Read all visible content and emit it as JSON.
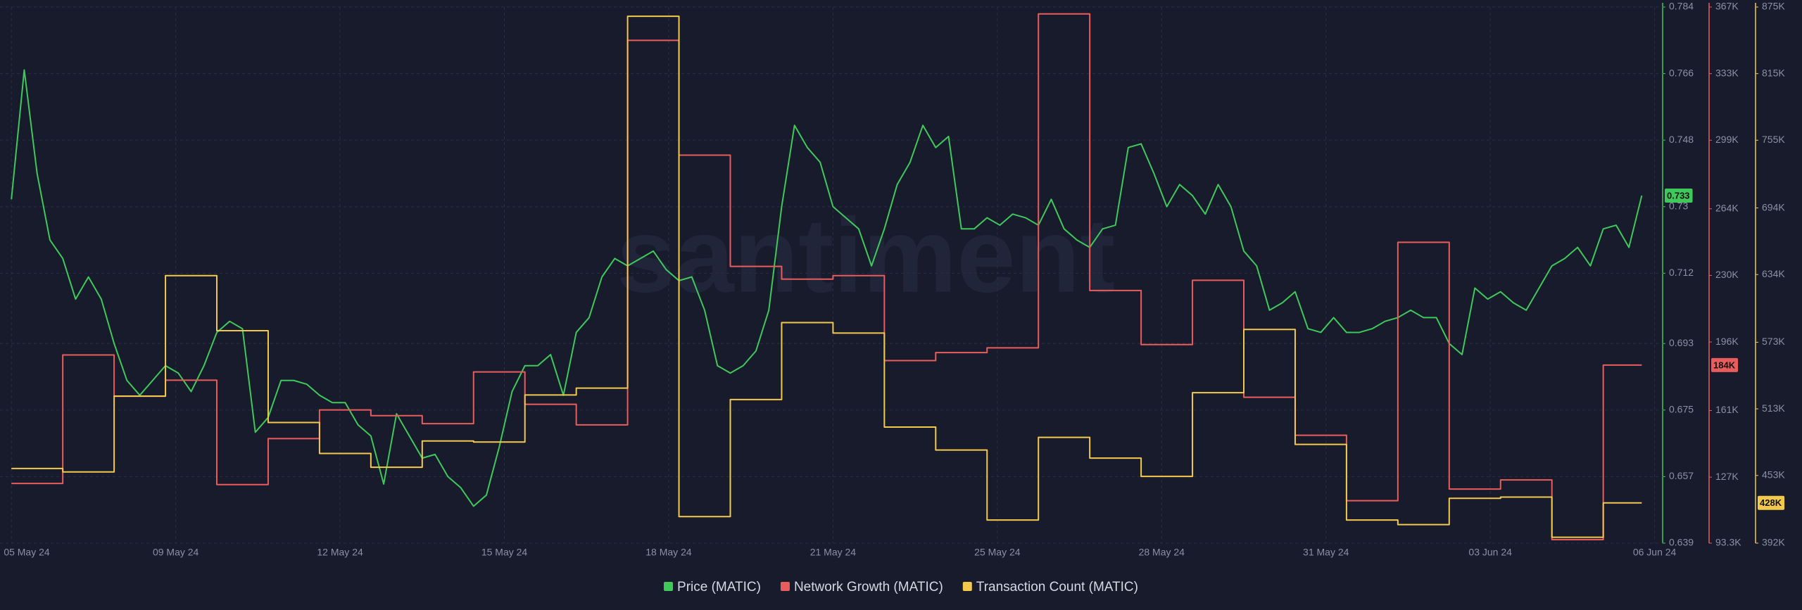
{
  "chart_data": {
    "type": "line",
    "watermark": "santiment",
    "xlim": [
      "2024-05-05T14:40",
      "2024-06-06T23:45"
    ],
    "xticks": [
      {
        "value": "2024-05-05T20:00",
        "label": "05 May 24"
      },
      {
        "value": "2024-05-09T00:48",
        "label": "09 May 24"
      },
      {
        "value": "2024-05-12T05:36",
        "label": "12 May 24"
      },
      {
        "value": "2024-05-15T10:24",
        "label": "15 May 24"
      },
      {
        "value": "2024-05-18T15:12",
        "label": "18 May 24"
      },
      {
        "value": "2024-05-21T20:00",
        "label": "21 May 24"
      },
      {
        "value": "2024-05-25T00:48",
        "label": "25 May 24"
      },
      {
        "value": "2024-05-28T05:36",
        "label": "28 May 24"
      },
      {
        "value": "2024-05-31T10:24",
        "label": "31 May 24"
      },
      {
        "value": "2024-06-03T15:12",
        "label": "03 Jun 24"
      },
      {
        "value": "2024-06-06T20:00",
        "label": "06 Jun 24"
      }
    ],
    "ylim": [
      0.639,
      0.784
    ],
    "yticks": [
      0.784,
      0.766,
      0.748,
      0.73,
      0.712,
      0.693,
      0.675,
      0.657,
      0.639
    ],
    "y2lim": [
      93300,
      367000
    ],
    "y2ticks": [
      {
        "value": 367000,
        "label": "367K"
      },
      {
        "value": 333000,
        "label": "333K"
      },
      {
        "value": 299000,
        "label": "299K"
      },
      {
        "value": 264000,
        "label": "264K"
      },
      {
        "value": 230000,
        "label": "230K"
      },
      {
        "value": 196000,
        "label": "196K"
      },
      {
        "value": 161000,
        "label": "161K"
      },
      {
        "value": 127000,
        "label": "127K"
      },
      {
        "value": 93300,
        "label": "93.3K"
      }
    ],
    "y3lim": [
      392000,
      875000
    ],
    "y3ticks": [
      {
        "value": 875000,
        "label": "875K"
      },
      {
        "value": 815000,
        "label": "815K"
      },
      {
        "value": 755000,
        "label": "755K"
      },
      {
        "value": 694000,
        "label": "694K"
      },
      {
        "value": 634000,
        "label": "634K"
      },
      {
        "value": 573000,
        "label": "573K"
      },
      {
        "value": 513000,
        "label": "513K"
      },
      {
        "value": 453000,
        "label": "453K"
      },
      {
        "value": 392000,
        "label": "392K"
      }
    ],
    "grid": true,
    "legend": "bottom",
    "x": [
      "2024-05-05T20:00",
      "2024-05-06T02:00",
      "2024-05-06T08:00",
      "2024-05-06T14:00",
      "2024-05-06T20:00",
      "2024-05-07T02:00",
      "2024-05-07T08:00",
      "2024-05-07T14:00",
      "2024-05-07T20:00",
      "2024-05-08T02:00",
      "2024-05-08T08:00",
      "2024-05-08T14:00",
      "2024-05-08T20:00",
      "2024-05-09T02:00",
      "2024-05-09T08:00",
      "2024-05-09T14:00",
      "2024-05-09T20:00",
      "2024-05-10T02:00",
      "2024-05-10T08:00",
      "2024-05-10T14:00",
      "2024-05-10T20:00",
      "2024-05-11T02:00",
      "2024-05-11T08:00",
      "2024-05-11T14:00",
      "2024-05-11T20:00",
      "2024-05-12T02:00",
      "2024-05-12T08:00",
      "2024-05-12T14:00",
      "2024-05-12T20:00",
      "2024-05-13T02:00",
      "2024-05-13T08:00",
      "2024-05-13T14:00",
      "2024-05-13T20:00",
      "2024-05-14T02:00",
      "2024-05-14T08:00",
      "2024-05-14T14:00",
      "2024-05-14T20:00",
      "2024-05-15T02:00",
      "2024-05-15T08:00",
      "2024-05-15T14:00",
      "2024-05-15T20:00",
      "2024-05-16T02:00",
      "2024-05-16T08:00",
      "2024-05-16T14:00",
      "2024-05-16T20:00",
      "2024-05-17T02:00",
      "2024-05-17T08:00",
      "2024-05-17T14:00",
      "2024-05-17T20:00",
      "2024-05-18T02:00",
      "2024-05-18T08:00",
      "2024-05-18T14:00",
      "2024-05-18T20:00",
      "2024-05-19T02:00",
      "2024-05-19T08:00",
      "2024-05-19T14:00",
      "2024-05-19T20:00",
      "2024-05-20T02:00",
      "2024-05-20T08:00",
      "2024-05-20T14:00",
      "2024-05-20T20:00",
      "2024-05-21T02:00",
      "2024-05-21T08:00",
      "2024-05-21T14:00",
      "2024-05-21T20:00",
      "2024-05-22T02:00",
      "2024-05-22T08:00",
      "2024-05-22T14:00",
      "2024-05-22T20:00",
      "2024-05-23T02:00",
      "2024-05-23T08:00",
      "2024-05-23T14:00",
      "2024-05-23T20:00",
      "2024-05-24T02:00",
      "2024-05-24T08:00",
      "2024-05-24T14:00",
      "2024-05-24T20:00",
      "2024-05-25T02:00",
      "2024-05-25T08:00",
      "2024-05-25T14:00",
      "2024-05-25T20:00",
      "2024-05-26T02:00",
      "2024-05-26T08:00",
      "2024-05-26T14:00",
      "2024-05-26T20:00",
      "2024-05-27T02:00",
      "2024-05-27T08:00",
      "2024-05-27T14:00",
      "2024-05-27T20:00",
      "2024-05-28T02:00",
      "2024-05-28T08:00",
      "2024-05-28T14:00",
      "2024-05-28T20:00",
      "2024-05-29T02:00",
      "2024-05-29T08:00",
      "2024-05-29T14:00",
      "2024-05-29T20:00",
      "2024-05-30T02:00",
      "2024-05-30T08:00",
      "2024-05-30T14:00",
      "2024-05-30T20:00",
      "2024-05-31T02:00",
      "2024-05-31T08:00",
      "2024-05-31T14:00",
      "2024-05-31T20:00",
      "2024-06-01T02:00",
      "2024-06-01T08:00",
      "2024-06-01T14:00",
      "2024-06-01T20:00",
      "2024-06-02T02:00",
      "2024-06-02T08:00",
      "2024-06-02T14:00",
      "2024-06-02T20:00",
      "2024-06-03T02:00",
      "2024-06-03T08:00",
      "2024-06-03T14:00",
      "2024-06-03T20:00",
      "2024-06-04T02:00",
      "2024-06-04T08:00",
      "2024-06-04T14:00",
      "2024-06-04T20:00",
      "2024-06-05T02:00",
      "2024-06-05T08:00",
      "2024-06-05T14:00",
      "2024-06-05T20:00",
      "2024-06-06T02:00",
      "2024-06-06T08:00",
      "2024-06-06T14:00"
    ],
    "series": [
      {
        "name": "Price (MATIC)",
        "color": "#3ec95a",
        "axis": "y",
        "last_value_label": "0.733",
        "values": [
          0.732,
          0.767,
          0.739,
          0.721,
          0.716,
          0.705,
          0.711,
          0.705,
          0.693,
          0.683,
          0.679,
          0.683,
          0.687,
          0.685,
          0.68,
          0.687,
          0.696,
          0.699,
          0.697,
          0.669,
          0.673,
          0.683,
          0.683,
          0.682,
          0.679,
          0.677,
          0.677,
          0.671,
          0.668,
          0.655,
          0.674,
          0.668,
          0.662,
          0.663,
          0.657,
          0.654,
          0.649,
          0.652,
          0.665,
          0.68,
          0.687,
          0.687,
          0.69,
          0.679,
          0.696,
          0.7,
          0.711,
          0.716,
          0.714,
          0.716,
          0.718,
          0.713,
          0.71,
          0.711,
          0.702,
          0.687,
          0.685,
          0.687,
          0.691,
          0.702,
          0.73,
          0.752,
          0.746,
          0.742,
          0.73,
          0.727,
          0.724,
          0.714,
          0.724,
          0.736,
          0.742,
          0.752,
          0.746,
          0.749,
          0.724,
          0.724,
          0.727,
          0.725,
          0.728,
          0.727,
          0.725,
          0.732,
          0.724,
          0.721,
          0.719,
          0.724,
          0.725,
          0.746,
          0.747,
          0.739,
          0.73,
          0.736,
          0.733,
          0.728,
          0.736,
          0.73,
          0.718,
          0.714,
          0.702,
          0.704,
          0.707,
          0.697,
          0.696,
          0.7,
          0.696,
          0.696,
          0.697,
          0.699,
          0.7,
          0.702,
          0.7,
          0.7,
          0.693,
          0.69,
          0.708,
          0.705,
          0.707,
          0.704,
          0.702,
          0.708,
          0.714,
          0.716,
          0.719,
          0.714,
          0.724,
          0.725,
          0.719,
          0.733
        ]
      },
      {
        "name": "Network Growth (MATIC)",
        "color": "#e95c5c",
        "axis": "y2",
        "step": true,
        "last_value_label": "184K",
        "values": [
          123800,
          123800,
          123800,
          123800,
          189400,
          189400,
          189400,
          189400,
          168300,
          168300,
          168300,
          168300,
          176500,
          176500,
          176500,
          176500,
          123200,
          123200,
          123200,
          123200,
          146700,
          146700,
          146700,
          146700,
          161300,
          161300,
          161300,
          161300,
          158400,
          158400,
          158400,
          158400,
          154300,
          154300,
          154300,
          154300,
          180700,
          180700,
          180700,
          180700,
          164200,
          164200,
          164200,
          164200,
          153700,
          153700,
          153700,
          153700,
          350000,
          350000,
          350000,
          350000,
          291400,
          291400,
          291400,
          291400,
          234600,
          234600,
          234600,
          234600,
          228100,
          228100,
          228100,
          228100,
          229900,
          229900,
          229900,
          229900,
          186500,
          186500,
          186500,
          186500,
          190600,
          190600,
          190600,
          190600,
          193000,
          193000,
          193000,
          193000,
          363500,
          363500,
          363500,
          363500,
          222300,
          222300,
          222300,
          222300,
          194700,
          194700,
          194700,
          194700,
          227500,
          227500,
          227500,
          227500,
          167800,
          167800,
          167800,
          167800,
          148400,
          148400,
          148400,
          148400,
          115000,
          115000,
          115000,
          115000,
          246900,
          246900,
          246900,
          246900,
          120900,
          120900,
          120900,
          120900,
          125600,
          125600,
          125600,
          125600,
          95100,
          95100,
          95100,
          95100,
          184200,
          184200,
          184200,
          184200
        ]
      },
      {
        "name": "Transaction Count (MATIC)",
        "color": "#f2c94c",
        "axis": "y3",
        "step": true,
        "last_value_label": "428K",
        "values": [
          459300,
          459300,
          459300,
          459300,
          456200,
          456200,
          456200,
          456200,
          524500,
          524500,
          524500,
          524500,
          633000,
          633000,
          633000,
          633000,
          583400,
          583400,
          583400,
          583400,
          500700,
          500700,
          500700,
          500700,
          472800,
          472800,
          472800,
          472800,
          460400,
          460400,
          460400,
          460400,
          484100,
          484100,
          484100,
          484100,
          483100,
          483100,
          483100,
          483100,
          525500,
          525500,
          525500,
          525500,
          531700,
          531700,
          531700,
          531700,
          866700,
          866700,
          866700,
          866700,
          415900,
          415900,
          415900,
          415900,
          521400,
          521400,
          521400,
          521400,
          590700,
          590700,
          590700,
          590700,
          581300,
          581300,
          581300,
          581300,
          496600,
          496600,
          496600,
          496600,
          475900,
          475900,
          475900,
          475900,
          412800,
          412800,
          412800,
          412800,
          487300,
          487300,
          487300,
          487300,
          468600,
          468600,
          468600,
          468600,
          452100,
          452100,
          452100,
          452100,
          527600,
          527600,
          527600,
          527600,
          584500,
          584500,
          584500,
          584500,
          481000,
          481000,
          481000,
          481000,
          412800,
          412800,
          412800,
          412800,
          408700,
          408700,
          408700,
          408700,
          432400,
          432400,
          432400,
          432400,
          433500,
          433500,
          433500,
          433500,
          397300,
          397300,
          397300,
          397300,
          428300,
          428300,
          428300,
          428300
        ]
      }
    ]
  }
}
